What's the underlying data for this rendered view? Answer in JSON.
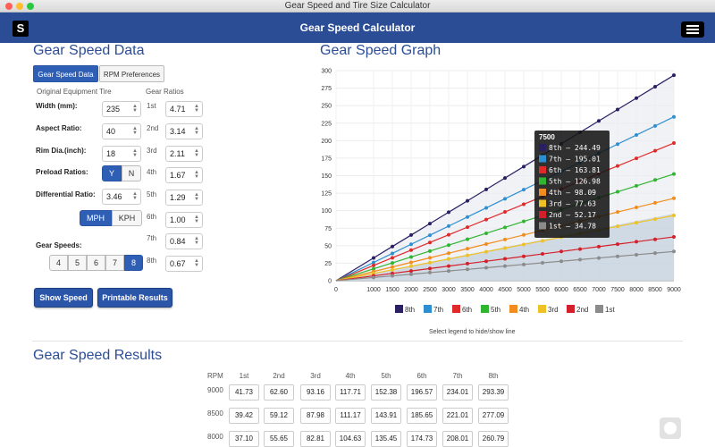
{
  "window": {
    "title": "Gear Speed and Tire Size Calculator"
  },
  "header": {
    "logo": "S",
    "title": "Gear Speed Calculator",
    "menu_icon": "hamburger-menu-icon"
  },
  "data_section": {
    "title": "Gear Speed Data",
    "tabs": [
      {
        "label": "Gear Speed Data",
        "active": true
      },
      {
        "label": "RPM Preferences",
        "active": false
      }
    ],
    "original_tire_label": "Original Equipment Tire",
    "gear_ratios_label": "Gear Ratios",
    "fields": {
      "width": {
        "label": "Width (mm):",
        "value": "235"
      },
      "aspect": {
        "label": "Aspect Ratio:",
        "value": "40"
      },
      "rim": {
        "label": "Rim Dia.(inch):",
        "value": "18"
      },
      "preload": {
        "label": "Preload Ratios:",
        "yes": "Y",
        "no": "N",
        "selected": "Y"
      },
      "differential": {
        "label": "Differential Ratio:",
        "value": "3.46"
      },
      "units": {
        "mph": "MPH",
        "kph": "KPH",
        "selected": "MPH"
      },
      "gear_speeds": {
        "label": "Gear Speeds:",
        "options": [
          "4",
          "5",
          "6",
          "7",
          "8"
        ],
        "selected": "8"
      }
    },
    "gear_ratios": [
      {
        "gear": "1st",
        "value": "4.71"
      },
      {
        "gear": "2nd",
        "value": "3.14"
      },
      {
        "gear": "3rd",
        "value": "2.11"
      },
      {
        "gear": "4th",
        "value": "1.67"
      },
      {
        "gear": "5th",
        "value": "1.29"
      },
      {
        "gear": "6th",
        "value": "1.00"
      },
      {
        "gear": "7th",
        "value": "0.84"
      },
      {
        "gear": "8th",
        "value": "0.67"
      }
    ],
    "buttons": {
      "show": "Show Speed",
      "print": "Printable Results"
    }
  },
  "graph_section": {
    "title": "Gear Speed Graph",
    "legend_note": "Select legend to hide/show line",
    "tooltip": {
      "title": "7500",
      "rows": [
        "8th – 244.49",
        "7th – 195.01",
        "6th – 163.81",
        "5th – 126.98",
        "4th – 98.09",
        "3rd – 77.63",
        "2nd – 52.17",
        "1st – 34.78"
      ]
    }
  },
  "chart_data": {
    "type": "line",
    "x": [
      0,
      1000,
      1500,
      2000,
      2500,
      3000,
      3500,
      4000,
      4500,
      5000,
      5500,
      6000,
      6500,
      7000,
      7500,
      8000,
      8500,
      9000
    ],
    "ylim": [
      0,
      300
    ],
    "yticks": [
      0,
      25,
      50,
      75,
      100,
      125,
      150,
      175,
      200,
      225,
      250,
      275,
      300
    ],
    "grid": true,
    "legend_position": "bottom",
    "series": [
      {
        "name": "8th",
        "color": "#2a1f63",
        "final": 293.39
      },
      {
        "name": "7th",
        "color": "#2e8fd0",
        "final": 234.01
      },
      {
        "name": "6th",
        "color": "#e02a2a",
        "final": 196.57
      },
      {
        "name": "5th",
        "color": "#2fb52f",
        "final": 152.38
      },
      {
        "name": "4th",
        "color": "#f28c1e",
        "final": 117.71
      },
      {
        "name": "3rd",
        "color": "#eec125",
        "final": 93.16
      },
      {
        "name": "2nd",
        "color": "#d4202a",
        "final": 62.6
      },
      {
        "name": "1st",
        "color": "#8b8b8b",
        "final": 41.73
      }
    ]
  },
  "results_section": {
    "title": "Gear Speed Results",
    "rpm_label": "RPM",
    "gears": [
      "1st",
      "2nd",
      "3rd",
      "4th",
      "5th",
      "6th",
      "7th",
      "8th"
    ],
    "rows": [
      {
        "rpm": "9000",
        "values": [
          "41.73",
          "62.60",
          "93.16",
          "117.71",
          "152.38",
          "196.57",
          "234.01",
          "293.39"
        ]
      },
      {
        "rpm": "8500",
        "values": [
          "39.42",
          "59.12",
          "87.98",
          "111.17",
          "143.91",
          "185.65",
          "221.01",
          "277.09"
        ]
      },
      {
        "rpm": "8000",
        "values": [
          "37.10",
          "55.65",
          "82.81",
          "104.63",
          "135.45",
          "174.73",
          "208.01",
          "260.79"
        ]
      }
    ]
  }
}
